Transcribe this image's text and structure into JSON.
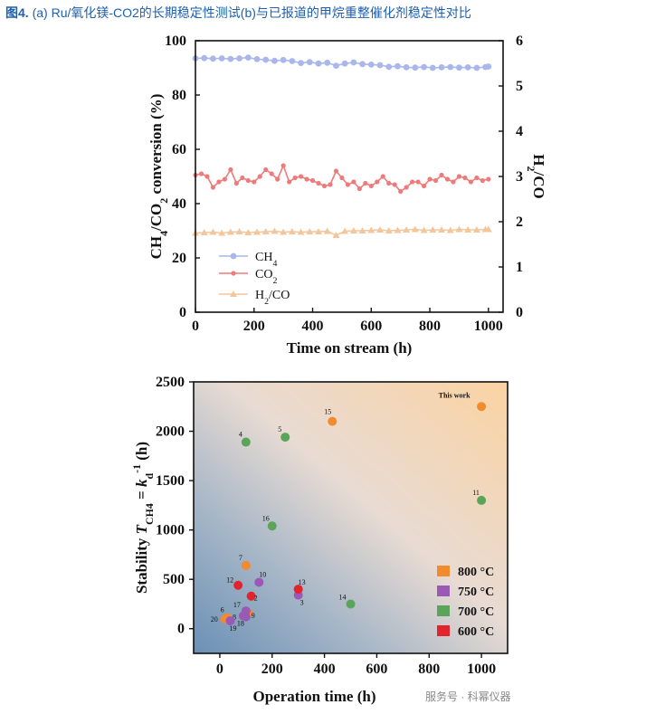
{
  "caption": {
    "fig": "图4.",
    "text": " (a) Ru/氧化镁-CO2的长期稳定性测试(b)与已报道的甲烷重整催化剂稳定性对比"
  },
  "watermark": "服务号 · 科幂仪器",
  "chart_data": [
    {
      "type": "line",
      "xlabel": "Time on stream (h)",
      "ylabel": "CH4/CO2 conversion (%)",
      "y2label": "H2/CO",
      "xlim": [
        0,
        1050
      ],
      "ylim": [
        0,
        100
      ],
      "y2lim": [
        0,
        6
      ],
      "xticks": [
        "0",
        "200",
        "400",
        "600",
        "800",
        "1000"
      ],
      "yticks": [
        "0",
        "20",
        "40",
        "60",
        "80",
        "100"
      ],
      "y2ticks": [
        "0",
        "1",
        "2",
        "3",
        "4",
        "5",
        "6"
      ],
      "series": [
        {
          "name": "CH4",
          "axis": "left",
          "color": "#a9b7ec",
          "x": [
            0,
            30,
            60,
            90,
            120,
            150,
            180,
            210,
            240,
            270,
            300,
            330,
            360,
            390,
            420,
            450,
            480,
            510,
            540,
            570,
            600,
            630,
            660,
            690,
            720,
            750,
            780,
            810,
            840,
            870,
            900,
            930,
            960,
            990,
            1000
          ],
          "values": [
            93.5,
            93.6,
            93.4,
            93.5,
            93.3,
            93.5,
            93.8,
            93.2,
            93.0,
            92.6,
            92.9,
            92.5,
            91.8,
            92.1,
            91.6,
            91.9,
            90.8,
            91.6,
            92.0,
            91.4,
            91.2,
            91.0,
            90.4,
            90.6,
            90.2,
            90.1,
            90.3,
            90.0,
            90.2,
            90.3,
            90.1,
            90.2,
            90.0,
            90.3,
            90.5
          ]
        },
        {
          "name": "CO2",
          "axis": "left",
          "color": "#ee7b7b",
          "x": [
            0,
            20,
            40,
            60,
            80,
            100,
            120,
            140,
            160,
            180,
            200,
            220,
            240,
            260,
            280,
            300,
            320,
            340,
            360,
            380,
            400,
            420,
            440,
            460,
            480,
            500,
            520,
            540,
            560,
            580,
            600,
            620,
            640,
            660,
            680,
            700,
            720,
            740,
            760,
            780,
            800,
            820,
            840,
            860,
            880,
            900,
            920,
            940,
            960,
            980,
            1000
          ],
          "values": [
            50.5,
            51.0,
            50.0,
            46.0,
            48.0,
            49.0,
            52.5,
            47.5,
            49.5,
            48.5,
            48.0,
            50.0,
            52.5,
            51.0,
            49.0,
            54.0,
            48.0,
            49.5,
            50.0,
            49.0,
            48.5,
            47.5,
            46.5,
            47.0,
            52.0,
            49.5,
            47.0,
            48.0,
            45.5,
            47.5,
            46.5,
            48.0,
            50.0,
            47.5,
            47.0,
            44.5,
            46.0,
            48.0,
            48.0,
            46.5,
            49.0,
            48.5,
            50.5,
            49.0,
            48.0,
            50.0,
            49.5,
            48.0,
            49.5,
            48.5,
            49.0
          ]
        },
        {
          "name": "H2/CO",
          "axis": "right",
          "color": "#f3c79b",
          "x": [
            0,
            30,
            60,
            90,
            120,
            150,
            180,
            210,
            240,
            270,
            300,
            330,
            360,
            390,
            420,
            450,
            480,
            510,
            540,
            570,
            600,
            630,
            660,
            690,
            720,
            750,
            780,
            810,
            840,
            870,
            900,
            930,
            960,
            990,
            1000
          ],
          "values": [
            1.75,
            1.76,
            1.77,
            1.75,
            1.77,
            1.78,
            1.76,
            1.77,
            1.78,
            1.79,
            1.77,
            1.78,
            1.77,
            1.78,
            1.78,
            1.79,
            1.7,
            1.79,
            1.8,
            1.8,
            1.81,
            1.82,
            1.8,
            1.81,
            1.82,
            1.83,
            1.81,
            1.82,
            1.82,
            1.81,
            1.83,
            1.82,
            1.82,
            1.83,
            1.83
          ]
        }
      ],
      "legend": {
        "placement": "bottom-left",
        "labels": [
          "CH4",
          "CO2",
          "H2/CO"
        ]
      }
    },
    {
      "type": "scatter",
      "xlabel": "Operation time (h)",
      "ylabel": "Stability TCH4 = kd-1 (h)",
      "xlim": [
        -100,
        1100
      ],
      "ylim": [
        -250,
        2500
      ],
      "xticks": [
        "0",
        "200",
        "400",
        "600",
        "800",
        "1000"
      ],
      "yticks": [
        "0",
        "500",
        "1000",
        "1500",
        "2000",
        "2500"
      ],
      "series": [
        {
          "name": "800 °C",
          "color": "#f28a2e",
          "points": [
            {
              "x": 1000,
              "y": 2250,
              "label": "This work"
            },
            {
              "x": 430,
              "y": 2100,
              "label": "15"
            },
            {
              "x": 100,
              "y": 640,
              "label": "7"
            },
            {
              "x": 30,
              "y": 110,
              "label": "6"
            },
            {
              "x": 20,
              "y": 100,
              "label": "20"
            },
            {
              "x": 110,
              "y": 155,
              "label": "9"
            }
          ]
        },
        {
          "name": "750 °C",
          "color": "#9b59b6",
          "points": [
            {
              "x": 150,
              "y": 470,
              "label": "10"
            },
            {
              "x": 300,
              "y": 340,
              "label": "3"
            },
            {
              "x": 100,
              "y": 180,
              "label": "17"
            },
            {
              "x": 90,
              "y": 130,
              "label": "8"
            },
            {
              "x": 100,
              "y": 120,
              "label": "18"
            },
            {
              "x": 40,
              "y": 80,
              "label": "19"
            }
          ]
        },
        {
          "name": "700 °C",
          "color": "#5aa55a",
          "points": [
            {
              "x": 100,
              "y": 1890,
              "label": "4"
            },
            {
              "x": 250,
              "y": 1940,
              "label": "5"
            },
            {
              "x": 1000,
              "y": 1300,
              "label": "11"
            },
            {
              "x": 200,
              "y": 1040,
              "label": "16"
            },
            {
              "x": 500,
              "y": 250,
              "label": "14"
            }
          ]
        },
        {
          "name": "600 °C",
          "color": "#e2252d",
          "points": [
            {
              "x": 70,
              "y": 440,
              "label": "12"
            },
            {
              "x": 300,
              "y": 400,
              "label": "13"
            },
            {
              "x": 120,
              "y": 330,
              "label": "2"
            }
          ]
        }
      ],
      "legend": {
        "placement": "bottom-right",
        "labels": [
          "800 °C",
          "750 °C",
          "700 °C",
          "600 °C"
        ]
      }
    }
  ]
}
